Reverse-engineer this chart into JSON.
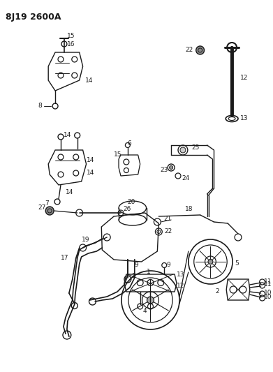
{
  "title": "8J19 2600A",
  "bg": "#ffffff",
  "lc": "#1a1a1a",
  "fig_width": 3.91,
  "fig_height": 5.33,
  "dpi": 100
}
